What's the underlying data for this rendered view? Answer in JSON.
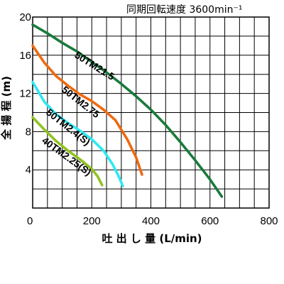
{
  "chart_data": {
    "type": "line",
    "title": "同期回転速度 3600min⁻¹",
    "xlabel": "吐 出 し 量 (L/min)",
    "ylabel": "全 揚 程 (m)",
    "xlim": [
      0,
      800
    ],
    "ylim": [
      0,
      20
    ],
    "x_ticks": [
      "0",
      "200",
      "400",
      "600",
      "800"
    ],
    "y_ticks": [
      "4",
      "8",
      "12",
      "16",
      "20"
    ],
    "grid": true,
    "series": [
      {
        "name": "50TM21.5",
        "color": "#1a7a3c",
        "points": [
          [
            0,
            19.2
          ],
          [
            50,
            18.3
          ],
          [
            100,
            17.3
          ],
          [
            150,
            16.4
          ],
          [
            200,
            15.3
          ],
          [
            250,
            14.2
          ],
          [
            300,
            13.0
          ],
          [
            350,
            11.7
          ],
          [
            400,
            10.3
          ],
          [
            450,
            8.7
          ],
          [
            500,
            6.9
          ],
          [
            550,
            5.0
          ],
          [
            600,
            3.0
          ],
          [
            640,
            1.2
          ]
        ]
      },
      {
        "name": "50TM2.75",
        "color": "#ee6a10",
        "points": [
          [
            0,
            17.0
          ],
          [
            40,
            15.2
          ],
          [
            80,
            13.8
          ],
          [
            120,
            12.8
          ],
          [
            160,
            11.9
          ],
          [
            200,
            11.2
          ],
          [
            240,
            10.3
          ],
          [
            280,
            9.2
          ],
          [
            320,
            7.2
          ],
          [
            350,
            5.3
          ],
          [
            370,
            3.5
          ]
        ]
      },
      {
        "name": "50TM2.4(S)",
        "color": "#2ee8f2",
        "points": [
          [
            0,
            13.2
          ],
          [
            40,
            11.1
          ],
          [
            80,
            9.8
          ],
          [
            120,
            8.9
          ],
          [
            160,
            8.1
          ],
          [
            200,
            7.2
          ],
          [
            240,
            6.0
          ],
          [
            270,
            4.6
          ],
          [
            290,
            3.4
          ],
          [
            305,
            2.3
          ]
        ]
      },
      {
        "name": "40TM2.25(S)",
        "color": "#8fc31f",
        "points": [
          [
            0,
            9.5
          ],
          [
            40,
            8.2
          ],
          [
            80,
            7.0
          ],
          [
            120,
            6.0
          ],
          [
            160,
            5.1
          ],
          [
            200,
            4.1
          ],
          [
            220,
            3.3
          ],
          [
            235,
            2.4
          ]
        ]
      }
    ]
  }
}
